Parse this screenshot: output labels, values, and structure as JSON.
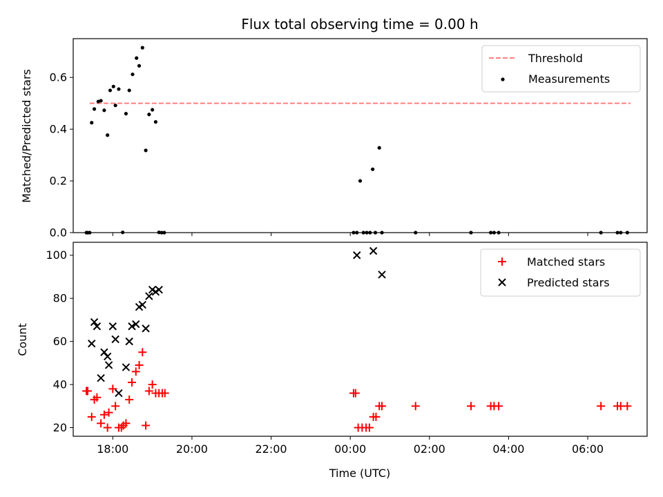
{
  "chart_data": [
    {
      "type": "scatter",
      "title": "Flux total observing time = 0.00 h",
      "xlabel": "",
      "ylabel": "Matched/Predicted stars",
      "xlim": [
        "17:00",
        "07:30"
      ],
      "ylim": [
        0,
        0.75
      ],
      "yticks": [
        "0.0",
        "0.2",
        "0.4",
        "0.6"
      ],
      "legend": {
        "position": "top-right",
        "entries": [
          "Threshold",
          "Measurements"
        ]
      },
      "threshold": {
        "name": "Threshold",
        "value": 0.5,
        "x_range": [
          "17:25",
          "07:05"
        ],
        "color": "#ff7f7f",
        "style": "dashed"
      },
      "series": [
        {
          "name": "Measurements",
          "marker": "dot",
          "color": "#000000",
          "points": [
            [
              "17:20",
              0
            ],
            [
              "17:22",
              0
            ],
            [
              "17:25",
              0
            ],
            [
              "17:28",
              0.425
            ],
            [
              "17:32",
              0.478
            ],
            [
              "17:38",
              0.507
            ],
            [
              "17:42",
              0.51
            ],
            [
              "17:47",
              0.473
            ],
            [
              "17:52",
              0.377
            ],
            [
              "17:56",
              0.55
            ],
            [
              "18:01",
              0.565
            ],
            [
              "18:04",
              0.492
            ],
            [
              "18:09",
              0.555
            ],
            [
              "18:15",
              0.001
            ],
            [
              "18:20",
              0.46
            ],
            [
              "18:25",
              0.55
            ],
            [
              "18:30",
              0.612
            ],
            [
              "18:36",
              0.675
            ],
            [
              "18:40",
              0.645
            ],
            [
              "18:45",
              0.715
            ],
            [
              "18:50",
              0.318
            ],
            [
              "18:55",
              0.457
            ],
            [
              "19:00",
              0.475
            ],
            [
              "19:05",
              0.428
            ],
            [
              "19:10",
              0.001
            ],
            [
              "19:14",
              0
            ],
            [
              "19:18",
              0
            ],
            [
              "00:05",
              0
            ],
            [
              "00:10",
              0
            ],
            [
              "00:15",
              0.2
            ],
            [
              "00:20",
              0
            ],
            [
              "00:25",
              0
            ],
            [
              "00:30",
              0
            ],
            [
              "00:34",
              0.245
            ],
            [
              "00:38",
              0
            ],
            [
              "00:44",
              0.328
            ],
            [
              "00:48",
              0
            ],
            [
              "01:39",
              0
            ],
            [
              "03:03",
              0
            ],
            [
              "03:33",
              0
            ],
            [
              "03:38",
              0
            ],
            [
              "03:45",
              0
            ],
            [
              "06:20",
              0
            ],
            [
              "06:45",
              0
            ],
            [
              "06:50",
              0
            ],
            [
              "07:00",
              0
            ]
          ]
        }
      ]
    },
    {
      "type": "scatter",
      "title": "",
      "xlabel": "Time (UTC)",
      "ylabel": "Count",
      "xlim": [
        "17:00",
        "07:30"
      ],
      "ylim": [
        16,
        106
      ],
      "xticks": [
        "18:00",
        "20:00",
        "22:00",
        "00:00",
        "02:00",
        "04:00",
        "06:00"
      ],
      "yticks": [
        "20",
        "40",
        "60",
        "80",
        "100"
      ],
      "legend": {
        "position": "top-right",
        "entries": [
          "Matched stars",
          "Predicted stars"
        ]
      },
      "series": [
        {
          "name": "Matched stars",
          "marker": "plus",
          "color": "#ff0000",
          "points": [
            [
              "17:20",
              37
            ],
            [
              "17:22",
              37
            ],
            [
              "17:28",
              25
            ],
            [
              "17:32",
              33
            ],
            [
              "17:36",
              34
            ],
            [
              "17:42",
              22
            ],
            [
              "17:47",
              26
            ],
            [
              "17:52",
              20
            ],
            [
              "17:54",
              27
            ],
            [
              "18:00",
              38
            ],
            [
              "18:04",
              30
            ],
            [
              "18:09",
              20
            ],
            [
              "18:13",
              20
            ],
            [
              "18:16",
              21
            ],
            [
              "18:20",
              22
            ],
            [
              "18:25",
              33
            ],
            [
              "18:29",
              41
            ],
            [
              "18:35",
              46
            ],
            [
              "18:40",
              49
            ],
            [
              "18:45",
              55
            ],
            [
              "18:50",
              21
            ],
            [
              "18:55",
              37
            ],
            [
              "19:00",
              40
            ],
            [
              "19:05",
              36
            ],
            [
              "19:10",
              36
            ],
            [
              "19:15",
              36
            ],
            [
              "19:19",
              36
            ],
            [
              "00:05",
              36
            ],
            [
              "00:08",
              36
            ],
            [
              "00:12",
              20
            ],
            [
              "00:18",
              20
            ],
            [
              "00:24",
              20
            ],
            [
              "00:29",
              20
            ],
            [
              "00:35",
              25
            ],
            [
              "00:39",
              25
            ],
            [
              "00:44",
              30
            ],
            [
              "00:48",
              30
            ],
            [
              "01:39",
              30
            ],
            [
              "03:03",
              30
            ],
            [
              "03:33",
              30
            ],
            [
              "03:38",
              30
            ],
            [
              "03:45",
              30
            ],
            [
              "06:20",
              30
            ],
            [
              "06:45",
              30
            ],
            [
              "06:50",
              30
            ],
            [
              "07:00",
              30
            ]
          ]
        },
        {
          "name": "Predicted stars",
          "marker": "x",
          "color": "#000000",
          "points": [
            [
              "17:28",
              59
            ],
            [
              "17:32",
              69
            ],
            [
              "17:36",
              67
            ],
            [
              "17:42",
              43
            ],
            [
              "17:47",
              55
            ],
            [
              "17:52",
              53
            ],
            [
              "17:54",
              49
            ],
            [
              "18:00",
              67
            ],
            [
              "18:04",
              61
            ],
            [
              "18:09",
              36
            ],
            [
              "18:20",
              48
            ],
            [
              "18:25",
              60
            ],
            [
              "18:29",
              67
            ],
            [
              "18:35",
              68
            ],
            [
              "18:40",
              76
            ],
            [
              "18:45",
              77
            ],
            [
              "18:50",
              66
            ],
            [
              "18:55",
              81
            ],
            [
              "19:00",
              84
            ],
            [
              "19:05",
              83
            ],
            [
              "19:10",
              84
            ],
            [
              "00:10",
              100
            ],
            [
              "00:35",
              102
            ],
            [
              "00:48",
              91
            ]
          ]
        }
      ]
    }
  ]
}
